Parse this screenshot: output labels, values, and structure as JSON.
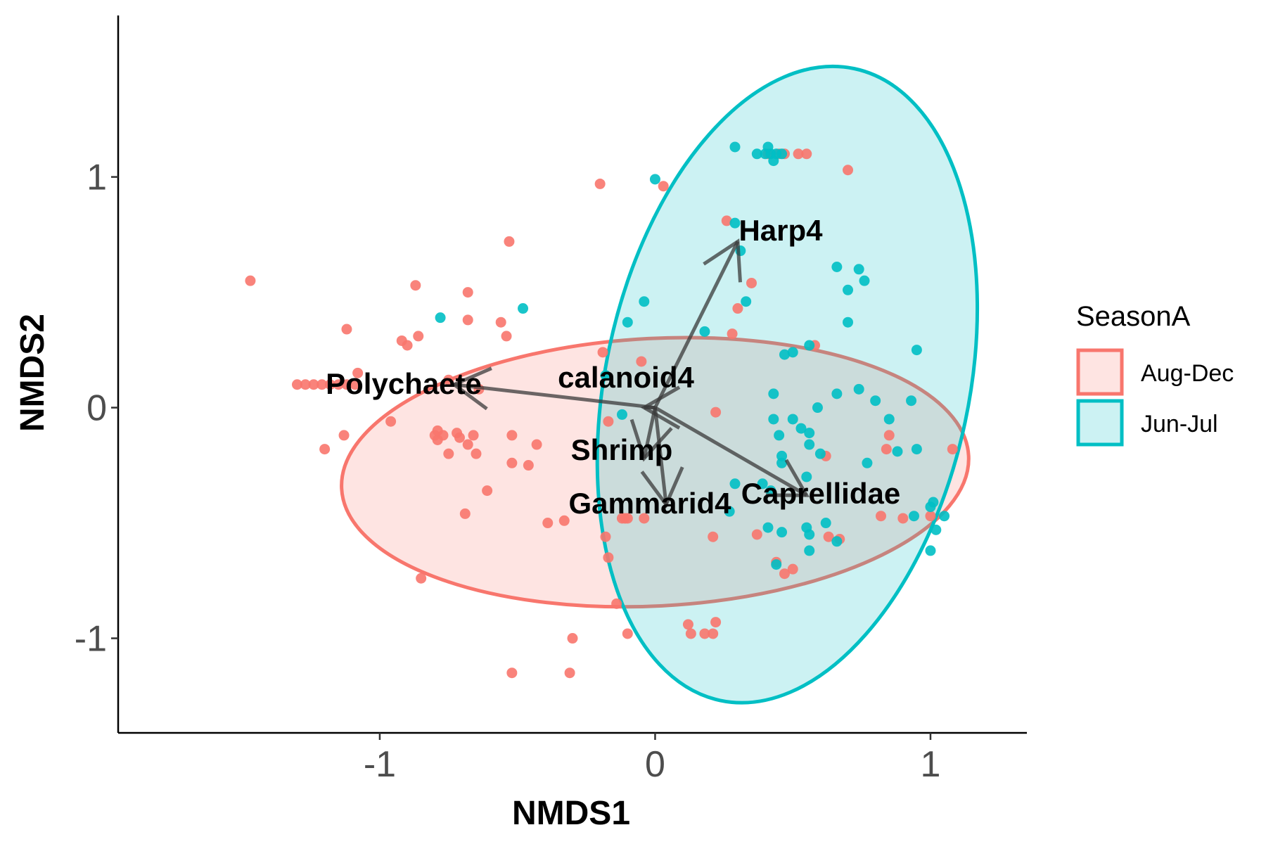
{
  "chart_data": {
    "type": "scatter",
    "title": "",
    "xlabel": "NMDS1",
    "ylabel": "NMDS2",
    "xlim": [
      -1.95,
      1.35
    ],
    "ylim": [
      -1.41,
      1.7
    ],
    "x_ticks": [
      {
        "value": -1,
        "label": "-1"
      },
      {
        "value": 0,
        "label": "0"
      },
      {
        "value": 1,
        "label": "1"
      }
    ],
    "y_ticks": [
      {
        "value": -1,
        "label": "-1"
      },
      {
        "value": 0,
        "label": "0"
      },
      {
        "value": 1,
        "label": "1"
      }
    ],
    "grid": false,
    "legend": {
      "title": "SeasonA",
      "placement": "right",
      "entries": [
        {
          "label": "Aug-Dec",
          "color": "#F8766D",
          "fill": "#F8766D"
        },
        {
          "label": "Jun-Jul",
          "color": "#00BFC4",
          "fill": "#00BFC4"
        }
      ]
    },
    "ellipses": [
      {
        "group": "Aug-Dec",
        "center": [
          0.0,
          -0.28
        ],
        "rx": 1.14,
        "ry": 0.58,
        "rotation_deg": -3
      },
      {
        "group": "Jun-Jul",
        "center": [
          0.48,
          0.1
        ],
        "rx": 0.66,
        "ry": 1.4,
        "rotation_deg": 12
      }
    ],
    "series": [
      {
        "name": "Aug-Dec",
        "color": "#F8766D",
        "points": [
          [
            -1.47,
            0.55
          ],
          [
            -1.3,
            0.1
          ],
          [
            -1.27,
            0.1
          ],
          [
            -1.24,
            0.1
          ],
          [
            -1.21,
            0.1
          ],
          [
            -1.18,
            0.1
          ],
          [
            -1.15,
            0.1
          ],
          [
            -1.12,
            0.1
          ],
          [
            -1.09,
            0.1
          ],
          [
            -1.12,
            0.34
          ],
          [
            -1.08,
            0.15
          ],
          [
            -1.13,
            -0.12
          ],
          [
            -1.2,
            -0.18
          ],
          [
            -0.96,
            -0.06
          ],
          [
            -0.92,
            0.29
          ],
          [
            -0.9,
            0.27
          ],
          [
            -0.86,
            0.31
          ],
          [
            -0.87,
            0.53
          ],
          [
            -0.85,
            -0.74
          ],
          [
            -0.8,
            -0.12
          ],
          [
            -0.79,
            -0.14
          ],
          [
            -0.79,
            -0.1
          ],
          [
            -0.77,
            -0.12
          ],
          [
            -0.75,
            -0.2
          ],
          [
            -0.75,
            0.12
          ],
          [
            -0.72,
            -0.11
          ],
          [
            -0.71,
            -0.13
          ],
          [
            -0.69,
            -0.46
          ],
          [
            -0.68,
            -0.16
          ],
          [
            -0.68,
            0.38
          ],
          [
            -0.68,
            0.5
          ],
          [
            -0.66,
            -0.12
          ],
          [
            -0.65,
            -0.2
          ],
          [
            -0.64,
            0.08
          ],
          [
            -0.61,
            -0.36
          ],
          [
            -0.56,
            0.37
          ],
          [
            -0.54,
            0.31
          ],
          [
            -0.53,
            0.72
          ],
          [
            -0.52,
            -0.12
          ],
          [
            -0.52,
            -0.24
          ],
          [
            -0.52,
            -1.15
          ],
          [
            -0.46,
            -0.25
          ],
          [
            -0.43,
            -0.16
          ],
          [
            -0.39,
            -0.5
          ],
          [
            -0.33,
            -0.49
          ],
          [
            -0.3,
            -1.0
          ],
          [
            -0.31,
            -1.15
          ],
          [
            -0.2,
            0.97
          ],
          [
            -0.19,
            0.24
          ],
          [
            -0.17,
            -0.06
          ],
          [
            -0.18,
            -0.56
          ],
          [
            -0.17,
            -0.65
          ],
          [
            -0.14,
            -0.85
          ],
          [
            -0.12,
            -0.48
          ],
          [
            -0.11,
            -0.48
          ],
          [
            -0.1,
            -0.48
          ],
          [
            -0.1,
            -0.98
          ],
          [
            -0.05,
            0.2
          ],
          [
            -0.04,
            -0.48
          ],
          [
            0.03,
            0.96
          ],
          [
            0.13,
            -0.98
          ],
          [
            0.18,
            -0.98
          ],
          [
            0.21,
            -0.98
          ],
          [
            0.12,
            -0.94
          ],
          [
            0.22,
            -0.93
          ],
          [
            0.21,
            -0.56
          ],
          [
            0.22,
            -0.02
          ],
          [
            0.26,
            0.81
          ],
          [
            0.28,
            0.32
          ],
          [
            0.3,
            0.43
          ],
          [
            0.35,
            0.54
          ],
          [
            0.37,
            -0.55
          ],
          [
            0.41,
            1.1
          ],
          [
            0.45,
            1.1
          ],
          [
            0.47,
            1.1
          ],
          [
            0.52,
            1.1
          ],
          [
            0.55,
            1.1
          ],
          [
            0.44,
            -0.67
          ],
          [
            0.47,
            -0.72
          ],
          [
            0.5,
            -0.7
          ],
          [
            0.58,
            0.27
          ],
          [
            0.62,
            -0.21
          ],
          [
            0.63,
            -0.56
          ],
          [
            0.67,
            -0.57
          ],
          [
            0.7,
            1.03
          ],
          [
            0.82,
            -0.47
          ],
          [
            0.84,
            -0.18
          ],
          [
            0.85,
            -0.12
          ],
          [
            0.9,
            -0.48
          ],
          [
            1.0,
            -0.47
          ],
          [
            1.08,
            -0.18
          ]
        ]
      },
      {
        "name": "Jun-Jul",
        "color": "#00BFC4",
        "points": [
          [
            -0.78,
            0.39
          ],
          [
            -0.48,
            0.43
          ],
          [
            -0.1,
            0.37
          ],
          [
            -0.04,
            0.46
          ],
          [
            0.0,
            0.99
          ],
          [
            -0.18,
            0.14
          ],
          [
            -0.12,
            -0.03
          ],
          [
            0.18,
            0.33
          ],
          [
            0.29,
            1.13
          ],
          [
            0.29,
            0.8
          ],
          [
            0.31,
            0.68
          ],
          [
            0.33,
            0.46
          ],
          [
            0.37,
            1.1
          ],
          [
            0.4,
            1.1
          ],
          [
            0.41,
            1.13
          ],
          [
            0.42,
            1.1
          ],
          [
            0.43,
            1.07
          ],
          [
            0.44,
            1.1
          ],
          [
            0.46,
            1.1
          ],
          [
            0.47,
            0.23
          ],
          [
            0.43,
            0.06
          ],
          [
            0.43,
            -0.05
          ],
          [
            0.45,
            -0.12
          ],
          [
            0.46,
            -0.21
          ],
          [
            0.42,
            -0.36
          ],
          [
            0.46,
            -0.24
          ],
          [
            0.5,
            -0.05
          ],
          [
            0.53,
            -0.09
          ],
          [
            0.56,
            -0.11
          ],
          [
            0.56,
            -0.16
          ],
          [
            0.55,
            -0.3
          ],
          [
            0.55,
            -0.52
          ],
          [
            0.56,
            -0.55
          ],
          [
            0.56,
            -0.62
          ],
          [
            0.46,
            -0.54
          ],
          [
            0.41,
            -0.52
          ],
          [
            0.44,
            -0.68
          ],
          [
            0.29,
            -0.33
          ],
          [
            0.27,
            -0.45
          ],
          [
            0.39,
            -0.33
          ],
          [
            0.59,
            0.0
          ],
          [
            0.6,
            -0.2
          ],
          [
            0.62,
            -0.5
          ],
          [
            0.66,
            -0.58
          ],
          [
            0.66,
            0.06
          ],
          [
            0.66,
            0.61
          ],
          [
            0.7,
            0.51
          ],
          [
            0.7,
            0.37
          ],
          [
            0.74,
            0.6
          ],
          [
            0.76,
            0.55
          ],
          [
            0.77,
            -0.24
          ],
          [
            0.74,
            0.08
          ],
          [
            0.8,
            0.03
          ],
          [
            0.85,
            -0.05
          ],
          [
            0.88,
            -0.19
          ],
          [
            0.93,
            0.03
          ],
          [
            0.95,
            0.25
          ],
          [
            0.94,
            -0.47
          ],
          [
            0.95,
            -0.18
          ],
          [
            1.0,
            -0.43
          ],
          [
            1.01,
            -0.41
          ],
          [
            1.02,
            -0.53
          ],
          [
            1.0,
            -0.62
          ],
          [
            1.05,
            -0.47
          ],
          [
            0.56,
            0.27
          ],
          [
            0.5,
            0.24
          ]
        ]
      }
    ],
    "vectors": [
      {
        "label": "Harp4",
        "end": [
          0.3,
          0.72
        ]
      },
      {
        "label": "Polychaete",
        "end": [
          -0.73,
          0.1
        ]
      },
      {
        "label": "calanoid4",
        "end": [
          -0.04,
          0.0
        ]
      },
      {
        "label": "Shrimp",
        "end": [
          -0.04,
          -0.22
        ]
      },
      {
        "label": "Gammarid4",
        "end": [
          0.04,
          -0.42
        ]
      },
      {
        "label": "Caprellidae",
        "end": [
          0.55,
          -0.38
        ]
      }
    ]
  }
}
